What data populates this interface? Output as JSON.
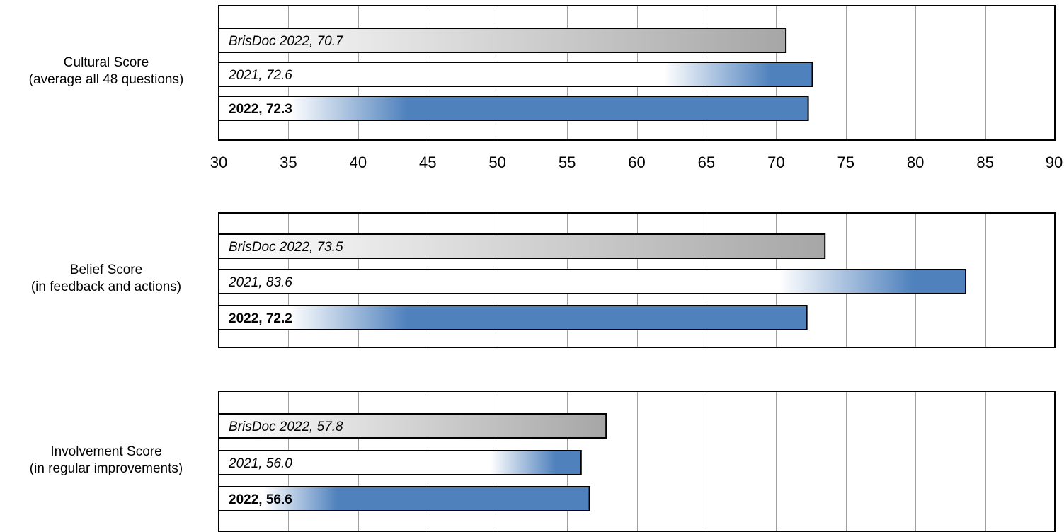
{
  "chart_data": {
    "type": "bar",
    "orientation": "horizontal",
    "xlim": [
      30,
      90
    ],
    "x_ticks": [
      "30",
      "35",
      "40",
      "45",
      "50",
      "55",
      "60",
      "65",
      "70",
      "75",
      "80",
      "85",
      "90"
    ],
    "grid": "vertical",
    "colors": {
      "benchmark": "#a6a6a6",
      "previous": "#4f81bd",
      "current": "#4f81bd"
    },
    "panels": [
      {
        "category_label": [
          "Cultural Score",
          "(average all 48 questions)"
        ],
        "bars": [
          {
            "label": "BrisDoc 2022, 70.7",
            "value": 70.7,
            "series": "benchmark"
          },
          {
            "label": "2021, 72.6",
            "value": 72.6,
            "series": "previous"
          },
          {
            "label": "2022, 72.3",
            "value": 72.3,
            "series": "current"
          }
        ]
      },
      {
        "category_label": [
          "Belief Score",
          "(in feedback and actions)"
        ],
        "bars": [
          {
            "label": "BrisDoc 2022, 73.5",
            "value": 73.5,
            "series": "benchmark"
          },
          {
            "label": "2021, 83.6",
            "value": 83.6,
            "series": "previous"
          },
          {
            "label": "2022, 72.2",
            "value": 72.2,
            "series": "current"
          }
        ]
      },
      {
        "category_label": [
          "Involvement Score",
          "(in regular improvements)"
        ],
        "bars": [
          {
            "label": "BrisDoc 2022, 57.8",
            "value": 57.8,
            "series": "benchmark"
          },
          {
            "label": "2021, 56.0",
            "value": 56.0,
            "series": "previous"
          },
          {
            "label": "2022, 56.6",
            "value": 56.6,
            "series": "current"
          }
        ]
      }
    ]
  }
}
